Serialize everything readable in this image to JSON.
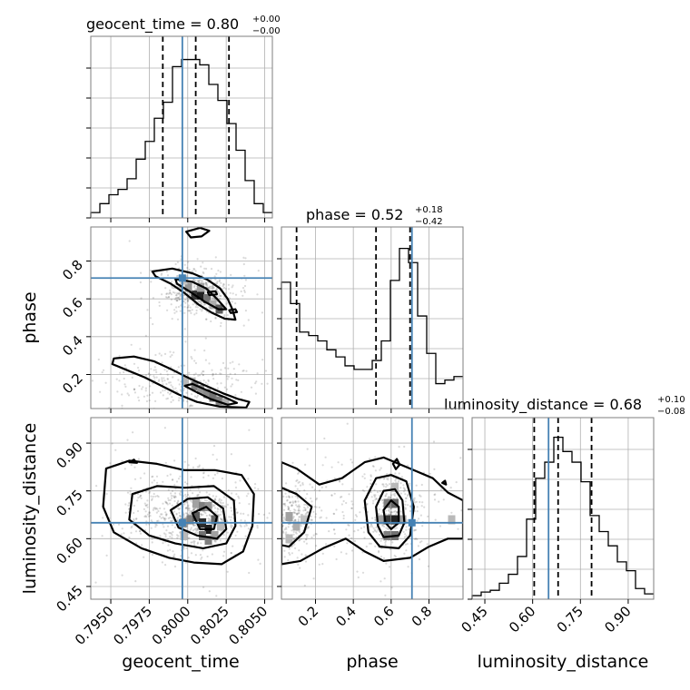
{
  "chart_data": {
    "type": "corner",
    "parameters": [
      "geocent_time",
      "phase",
      "luminosity_distance"
    ],
    "titles": [
      {
        "parameter": "geocent_time",
        "prefix": "geocent_time = ",
        "median": "0.80",
        "plus": "+0.00",
        "minus": "−0.00"
      },
      {
        "parameter": "phase",
        "prefix": "phase = ",
        "median": "0.52",
        "plus": "+0.18",
        "minus": "−0.42"
      },
      {
        "parameter": "luminosity_distance",
        "prefix": "luminosity_distance = ",
        "median": "0.68",
        "plus": "+0.10",
        "minus": "−0.08"
      }
    ],
    "axes": {
      "geocent_time": {
        "range": [
          0.7937,
          0.8055
        ],
        "ticks": [
          "0.7950",
          "0.7975",
          "0.8000",
          "0.8025",
          "0.8050"
        ],
        "tick_values": [
          0.795,
          0.7975,
          0.8,
          0.8025,
          0.805
        ]
      },
      "phase": {
        "range": [
          0.02,
          0.98
        ],
        "ticks": [
          "0.2",
          "0.4",
          "0.6",
          "0.8"
        ],
        "tick_values": [
          0.2,
          0.4,
          0.6,
          0.8
        ]
      },
      "luminosity_distance": {
        "range": [
          0.41,
          0.98
        ],
        "ticks": [
          "0.45",
          "0.60",
          "0.75",
          "0.90"
        ],
        "tick_values": [
          0.45,
          0.6,
          0.75,
          0.9
        ]
      }
    },
    "truth": {
      "geocent_time": 0.79965,
      "phase": 0.71,
      "luminosity_distance": 0.65
    },
    "quantiles": {
      "geocent_time": [
        0.79838,
        0.80052,
        0.80268
      ],
      "phase": [
        0.1,
        0.52,
        0.7
      ],
      "luminosity_distance": [
        0.605,
        0.68,
        0.785
      ]
    },
    "histograms": {
      "geocent_time": {
        "bin_start": 0.7937,
        "bin_width": 0.00059,
        "counts": [
          0.03,
          0.08,
          0.13,
          0.16,
          0.22,
          0.33,
          0.43,
          0.56,
          0.65,
          0.85,
          0.89,
          0.89,
          0.86,
          0.75,
          0.66,
          0.53,
          0.38,
          0.21,
          0.08,
          0.03
        ]
      },
      "phase": {
        "bin_start": 0.02,
        "bin_width": 0.048,
        "counts": [
          0.71,
          0.59,
          0.43,
          0.41,
          0.38,
          0.33,
          0.29,
          0.24,
          0.22,
          0.22,
          0.27,
          0.38,
          0.72,
          0.9,
          0.82,
          0.52,
          0.31,
          0.14,
          0.16,
          0.18
        ]
      },
      "luminosity_distance": {
        "bin_start": 0.41,
        "bin_width": 0.0285,
        "counts": [
          0.02,
          0.04,
          0.05,
          0.09,
          0.14,
          0.24,
          0.45,
          0.68,
          0.77,
          0.91,
          0.83,
          0.77,
          0.66,
          0.47,
          0.38,
          0.3,
          0.21,
          0.16,
          0.06,
          0.03
        ]
      }
    },
    "panels": {
      "phase_vs_geocent_time": {
        "density_cells": [
          [
            0.80045,
            0.62,
            0.85
          ],
          [
            0.80085,
            0.62,
            0.95
          ],
          [
            0.80125,
            0.6,
            0.6
          ],
          [
            0.80005,
            0.66,
            0.45
          ],
          [
            0.80165,
            0.57,
            0.35
          ],
          [
            0.80205,
            0.545,
            0.7
          ],
          [
            0.79975,
            0.7,
            0.25
          ],
          [
            0.80085,
            0.66,
            0.4
          ],
          [
            0.80045,
            0.14,
            0.55
          ],
          [
            0.80085,
            0.12,
            0.45
          ],
          [
            0.80125,
            0.1,
            0.5
          ],
          [
            0.80165,
            0.08,
            0.6
          ],
          [
            0.80205,
            0.06,
            0.55
          ],
          [
            0.79985,
            0.17,
            0.3
          ],
          [
            0.80245,
            0.05,
            0.35
          ]
        ],
        "contours": [
          [
            [
              0.7977,
              0.745
            ],
            [
              0.799,
              0.76
            ],
            [
              0.8003,
              0.735
            ],
            [
              0.8013,
              0.7
            ],
            [
              0.8021,
              0.655
            ],
            [
              0.8026,
              0.6
            ],
            [
              0.8029,
              0.545
            ],
            [
              0.8031,
              0.49
            ],
            [
              0.8024,
              0.495
            ],
            [
              0.8016,
              0.525
            ],
            [
              0.8007,
              0.57
            ],
            [
              0.7998,
              0.63
            ],
            [
              0.7989,
              0.68
            ],
            [
              0.7979,
              0.72
            ]
          ],
          [
            [
              0.7992,
              0.705
            ],
            [
              0.8003,
              0.69
            ],
            [
              0.8012,
              0.655
            ],
            [
              0.8019,
              0.6
            ],
            [
              0.8025,
              0.545
            ],
            [
              0.802,
              0.545
            ],
            [
              0.8011,
              0.585
            ],
            [
              0.8001,
              0.64
            ],
            [
              0.7993,
              0.68
            ]
          ],
          [
            [
              0.7952,
              0.285
            ],
            [
              0.7965,
              0.295
            ],
            [
              0.7978,
              0.27
            ],
            [
              0.799,
              0.225
            ],
            [
              0.8001,
              0.18
            ],
            [
              0.8012,
              0.14
            ],
            [
              0.8023,
              0.1
            ],
            [
              0.8033,
              0.07
            ],
            [
              0.804,
              0.055
            ],
            [
              0.8038,
              0.025
            ],
            [
              0.8021,
              0.03
            ],
            [
              0.8006,
              0.055
            ],
            [
              0.7994,
              0.095
            ],
            [
              0.7983,
              0.14
            ],
            [
              0.7972,
              0.185
            ],
            [
              0.796,
              0.225
            ],
            [
              0.7951,
              0.255
            ]
          ],
          [
            [
              0.8003,
              0.15
            ],
            [
              0.8013,
              0.115
            ],
            [
              0.8024,
              0.08
            ],
            [
              0.8032,
              0.05
            ],
            [
              0.8026,
              0.04
            ],
            [
              0.8015,
              0.07
            ],
            [
              0.8005,
              0.11
            ],
            [
              0.7998,
              0.14
            ]
          ],
          [
            [
              0.7999,
              0.955
            ],
            [
              0.8008,
              0.975
            ],
            [
              0.8014,
              0.96
            ],
            [
              0.8009,
              0.93
            ],
            [
              0.8002,
              0.925
            ]
          ],
          [
            [
              0.8013,
              0.635
            ],
            [
              0.8018,
              0.64
            ],
            [
              0.8019,
              0.625
            ],
            [
              0.8014,
              0.62
            ]
          ],
          [
            [
              0.8027,
              0.54
            ],
            [
              0.8031,
              0.545
            ],
            [
              0.8032,
              0.53
            ],
            [
              0.8028,
              0.525
            ]
          ]
        ]
      },
      "luminosity_distance_vs_geocent_time": {
        "density_cells": [
          [
            0.79975,
            0.65,
            0.45
          ],
          [
            0.80015,
            0.66,
            0.55
          ],
          [
            0.80055,
            0.67,
            0.7
          ],
          [
            0.80095,
            0.65,
            0.9
          ],
          [
            0.80135,
            0.63,
            0.95
          ],
          [
            0.80175,
            0.66,
            0.65
          ],
          [
            0.80055,
            0.71,
            0.4
          ],
          [
            0.80095,
            0.7,
            0.55
          ],
          [
            0.80135,
            0.7,
            0.45
          ],
          [
            0.80095,
            0.61,
            0.6
          ],
          [
            0.80135,
            0.595,
            0.55
          ],
          [
            0.80175,
            0.61,
            0.4
          ],
          [
            0.79975,
            0.61,
            0.3
          ],
          [
            0.80215,
            0.64,
            0.3
          ]
        ],
        "contours": [
          [
            [
              0.7947,
              0.82
            ],
            [
              0.7962,
              0.845
            ],
            [
              0.798,
              0.835
            ],
            [
              0.7998,
              0.815
            ],
            [
              0.8018,
              0.815
            ],
            [
              0.8035,
              0.8
            ],
            [
              0.8043,
              0.74
            ],
            [
              0.8042,
              0.64
            ],
            [
              0.8036,
              0.56
            ],
            [
              0.8022,
              0.52
            ],
            [
              0.8004,
              0.525
            ],
            [
              0.7988,
              0.54
            ],
            [
              0.797,
              0.57
            ],
            [
              0.7952,
              0.62
            ],
            [
              0.7945,
              0.7
            ]
          ],
          [
            [
              0.7964,
              0.74
            ],
            [
              0.798,
              0.765
            ],
            [
              0.7998,
              0.76
            ],
            [
              0.8017,
              0.765
            ],
            [
              0.803,
              0.72
            ],
            [
              0.8031,
              0.64
            ],
            [
              0.8025,
              0.585
            ],
            [
              0.801,
              0.57
            ],
            [
              0.7992,
              0.585
            ],
            [
              0.7975,
              0.61
            ],
            [
              0.7962,
              0.66
            ]
          ],
          [
            [
              0.7989,
              0.69
            ],
            [
              0.8,
              0.725
            ],
            [
              0.8013,
              0.73
            ],
            [
              0.8023,
              0.695
            ],
            [
              0.8025,
              0.63
            ],
            [
              0.8019,
              0.6
            ],
            [
              0.8006,
              0.61
            ],
            [
              0.7994,
              0.635
            ]
          ],
          [
            [
              0.8003,
              0.68
            ],
            [
              0.8012,
              0.7
            ],
            [
              0.8019,
              0.67
            ],
            [
              0.8017,
              0.63
            ],
            [
              0.8008,
              0.63
            ]
          ],
          [
            [
              0.7962,
              0.84
            ],
            [
              0.7965,
              0.848
            ],
            [
              0.7967,
              0.838
            ]
          ]
        ]
      },
      "luminosity_distance_vs_phase": {
        "density_cells": [
          [
            0.58,
            0.66,
            0.85
          ],
          [
            0.62,
            0.66,
            0.95
          ],
          [
            0.58,
            0.71,
            0.55
          ],
          [
            0.62,
            0.71,
            0.65
          ],
          [
            0.58,
            0.61,
            0.55
          ],
          [
            0.62,
            0.61,
            0.6
          ],
          [
            0.54,
            0.66,
            0.4
          ],
          [
            0.66,
            0.66,
            0.4
          ],
          [
            0.06,
            0.67,
            0.4
          ],
          [
            0.1,
            0.64,
            0.35
          ],
          [
            0.06,
            0.6,
            0.3
          ],
          [
            0.92,
            0.66,
            0.3
          ],
          [
            0.62,
            0.76,
            0.3
          ],
          [
            0.14,
            0.66,
            0.25
          ]
        ],
        "contours": [
          [
            [
              0.02,
              0.84
            ],
            [
              0.1,
              0.82
            ],
            [
              0.22,
              0.77
            ],
            [
              0.34,
              0.79
            ],
            [
              0.46,
              0.84
            ],
            [
              0.56,
              0.855
            ],
            [
              0.7,
              0.82
            ],
            [
              0.82,
              0.79
            ],
            [
              0.9,
              0.745
            ],
            [
              0.98,
              0.72
            ],
            [
              0.98,
              0.6
            ],
            [
              0.9,
              0.6
            ],
            [
              0.8,
              0.575
            ],
            [
              0.7,
              0.54
            ],
            [
              0.56,
              0.53
            ],
            [
              0.46,
              0.56
            ],
            [
              0.36,
              0.6
            ],
            [
              0.24,
              0.57
            ],
            [
              0.12,
              0.53
            ],
            [
              0.02,
              0.52
            ]
          ],
          [
            [
              0.02,
              0.76
            ],
            [
              0.1,
              0.74
            ],
            [
              0.18,
              0.7
            ],
            [
              0.14,
              0.62
            ],
            [
              0.06,
              0.575
            ],
            [
              0.02,
              0.58
            ]
          ],
          [
            [
              0.46,
              0.72
            ],
            [
              0.52,
              0.79
            ],
            [
              0.6,
              0.8
            ],
            [
              0.68,
              0.78
            ],
            [
              0.72,
              0.7
            ],
            [
              0.7,
              0.61
            ],
            [
              0.64,
              0.57
            ],
            [
              0.54,
              0.575
            ],
            [
              0.48,
              0.62
            ]
          ],
          [
            [
              0.52,
              0.7
            ],
            [
              0.56,
              0.75
            ],
            [
              0.62,
              0.755
            ],
            [
              0.66,
              0.72
            ],
            [
              0.67,
              0.65
            ],
            [
              0.64,
              0.61
            ],
            [
              0.56,
              0.605
            ],
            [
              0.53,
              0.64
            ]
          ],
          [
            [
              0.56,
              0.69
            ],
            [
              0.6,
              0.72
            ],
            [
              0.64,
              0.7
            ],
            [
              0.64,
              0.65
            ],
            [
              0.6,
              0.63
            ],
            [
              0.57,
              0.65
            ]
          ],
          [
            [
              0.61,
              0.835
            ],
            [
              0.63,
              0.85
            ],
            [
              0.645,
              0.832
            ],
            [
              0.625,
              0.818
            ]
          ],
          [
            [
              0.87,
              0.775
            ],
            [
              0.885,
              0.782
            ],
            [
              0.89,
              0.77
            ]
          ]
        ]
      }
    },
    "ylabels": {
      "row2": "phase",
      "row3": "luminosity_distance"
    },
    "xlabels": {
      "col1": "geocent_time",
      "col2": "phase",
      "col3": "luminosity_distance"
    },
    "colors": {
      "truth": "#4682b4",
      "line": "#000000",
      "grid": "#b0b0b0",
      "frame": "#7f7f7f"
    }
  }
}
